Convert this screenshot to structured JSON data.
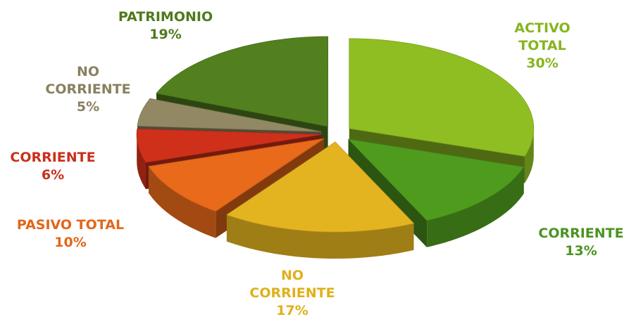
{
  "chart_data": {
    "type": "pie",
    "categories": [
      "ACTIVO TOTAL",
      "CORRIENTE",
      "NO CORRIENTE",
      "PASIVO TOTAL",
      "CORRIENTE",
      "NO CORRIENTE",
      "PATRIMONIO"
    ],
    "values": [
      30,
      13,
      17,
      10,
      6,
      5,
      19
    ],
    "value_labels": [
      "30%",
      "13%",
      "17%",
      "10%",
      "6%",
      "5%",
      "19%"
    ],
    "colors": [
      "#8fbe22",
      "#4f9b1e",
      "#e4b420",
      "#e86a1a",
      "#cf301a",
      "#928863",
      "#52801f"
    ],
    "label_colors": [
      "#86b51e",
      "#4a9420",
      "#e0b01a",
      "#e2661a",
      "#c9301c",
      "#8a8060",
      "#4f7a1c"
    ]
  }
}
